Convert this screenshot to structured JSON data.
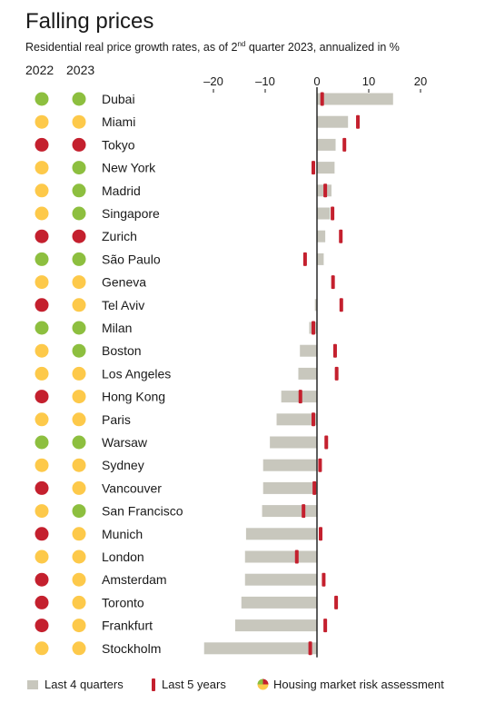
{
  "header": {
    "title": "Falling prices",
    "subtitle_pre": "Residential real price growth rates, as of 2",
    "subtitle_sup": "nd",
    "subtitle_post": " quarter 2023, annualized in %",
    "year_2022": "2022",
    "year_2023": "2023"
  },
  "legend": {
    "last4": "Last 4 quarters",
    "last5": "Last 5 years",
    "risk": "Housing market risk assessment"
  },
  "colors": {
    "bar": "#c8c7bd",
    "marker": "#c4202e",
    "green": "#8dbf3f",
    "yellow": "#fdc94a",
    "red": "#c4202e"
  },
  "chart_data": {
    "type": "bar",
    "orientation": "horizontal",
    "xlim": [
      -22,
      20
    ],
    "xticks": [
      -20,
      -10,
      0,
      10,
      20
    ],
    "xtick_labels": [
      "–20",
      "–10",
      "0",
      "10",
      "20"
    ],
    "series": [
      {
        "name": "Last 4 quarters",
        "kind": "bar"
      },
      {
        "name": "Last 5 years",
        "kind": "marker"
      }
    ],
    "rows": [
      {
        "city": "Dubai",
        "last4": 14.7,
        "last5": 1.0,
        "risk2022": "green",
        "risk2023": "green"
      },
      {
        "city": "Miami",
        "last4": 6.0,
        "last5": 7.9,
        "risk2022": "yellow",
        "risk2023": "yellow"
      },
      {
        "city": "Tokyo",
        "last4": 3.6,
        "last5": 5.3,
        "risk2022": "red",
        "risk2023": "red"
      },
      {
        "city": "New York",
        "last4": 3.4,
        "last5": -0.7,
        "risk2022": "yellow",
        "risk2023": "green"
      },
      {
        "city": "Madrid",
        "last4": 2.8,
        "last5": 1.6,
        "risk2022": "yellow",
        "risk2023": "green"
      },
      {
        "city": "Singapore",
        "last4": 2.5,
        "last5": 3.0,
        "risk2022": "yellow",
        "risk2023": "green"
      },
      {
        "city": "Zurich",
        "last4": 1.6,
        "last5": 4.6,
        "risk2022": "red",
        "risk2023": "red"
      },
      {
        "city": "São Paulo",
        "last4": 1.3,
        "last5": -2.3,
        "risk2022": "green",
        "risk2023": "green"
      },
      {
        "city": "Geneva",
        "last4": 0.0,
        "last5": 3.1,
        "risk2022": "yellow",
        "risk2023": "yellow"
      },
      {
        "city": "Tel Aviv",
        "last4": -0.4,
        "last5": 4.7,
        "risk2022": "red",
        "risk2023": "yellow"
      },
      {
        "city": "Milan",
        "last4": -1.5,
        "last5": -0.7,
        "risk2022": "green",
        "risk2023": "green"
      },
      {
        "city": "Boston",
        "last4": -3.3,
        "last5": 3.5,
        "risk2022": "yellow",
        "risk2023": "green"
      },
      {
        "city": "Los Angeles",
        "last4": -3.6,
        "last5": 3.8,
        "risk2022": "yellow",
        "risk2023": "yellow"
      },
      {
        "city": "Hong Kong",
        "last4": -6.9,
        "last5": -3.2,
        "risk2022": "red",
        "risk2023": "yellow"
      },
      {
        "city": "Paris",
        "last4": -7.8,
        "last5": -0.7,
        "risk2022": "yellow",
        "risk2023": "yellow"
      },
      {
        "city": "Warsaw",
        "last4": -9.1,
        "last5": 1.8,
        "risk2022": "green",
        "risk2023": "green"
      },
      {
        "city": "Sydney",
        "last4": -10.4,
        "last5": 0.6,
        "risk2022": "yellow",
        "risk2023": "yellow"
      },
      {
        "city": "Vancouver",
        "last4": -10.4,
        "last5": -0.5,
        "risk2022": "red",
        "risk2023": "yellow"
      },
      {
        "city": "San Francisco",
        "last4": -10.6,
        "last5": -2.6,
        "risk2022": "yellow",
        "risk2023": "green"
      },
      {
        "city": "Munich",
        "last4": -13.7,
        "last5": 0.7,
        "risk2022": "red",
        "risk2023": "yellow"
      },
      {
        "city": "London",
        "last4": -13.9,
        "last5": -3.9,
        "risk2022": "yellow",
        "risk2023": "yellow"
      },
      {
        "city": "Amsterdam",
        "last4": -13.9,
        "last5": 1.3,
        "risk2022": "red",
        "risk2023": "yellow"
      },
      {
        "city": "Toronto",
        "last4": -14.6,
        "last5": 3.7,
        "risk2022": "red",
        "risk2023": "yellow"
      },
      {
        "city": "Frankfurt",
        "last4": -15.8,
        "last5": 1.6,
        "risk2022": "red",
        "risk2023": "yellow"
      },
      {
        "city": "Stockholm",
        "last4": -21.8,
        "last5": -1.3,
        "risk2022": "yellow",
        "risk2023": "yellow"
      }
    ]
  }
}
